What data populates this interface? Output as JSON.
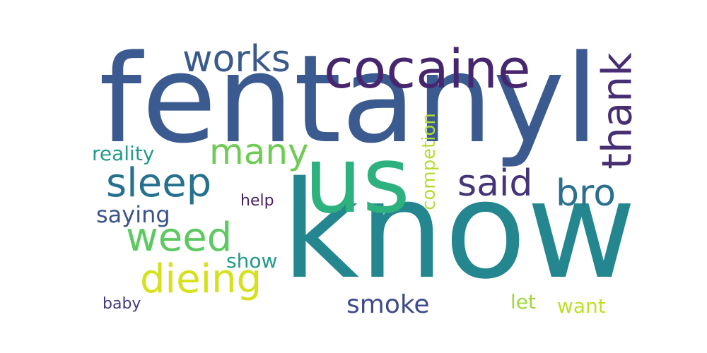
{
  "word_cloud": {
    "words": [
      {
        "text": "fentanyl",
        "color": "#3b5a8f"
      },
      {
        "text": "know",
        "color": "#24868e"
      },
      {
        "text": "us",
        "color": "#2db17f"
      },
      {
        "text": "cocaine",
        "color": "#46266e"
      },
      {
        "text": "works",
        "color": "#3a5a8c"
      },
      {
        "text": "thank",
        "color": "#472e72"
      },
      {
        "text": "many",
        "color": "#6fcb56"
      },
      {
        "text": "sleep",
        "color": "#26728e"
      },
      {
        "text": "said",
        "color": "#45347a"
      },
      {
        "text": "bro",
        "color": "#2a6f8e"
      },
      {
        "text": "reality",
        "color": "#25998a"
      },
      {
        "text": "saying",
        "color": "#3a5488"
      },
      {
        "text": "weed",
        "color": "#5ec962"
      },
      {
        "text": "help",
        "color": "#482069"
      },
      {
        "text": "competion",
        "color": "#b5dc36"
      },
      {
        "text": "show",
        "color": "#21988b"
      },
      {
        "text": "dieing",
        "color": "#d6e11e"
      },
      {
        "text": "smoke",
        "color": "#3e4b8a"
      },
      {
        "text": "let",
        "color": "#9cd93b"
      },
      {
        "text": "want",
        "color": "#bddf26"
      },
      {
        "text": "baby",
        "color": "#453981"
      }
    ]
  }
}
